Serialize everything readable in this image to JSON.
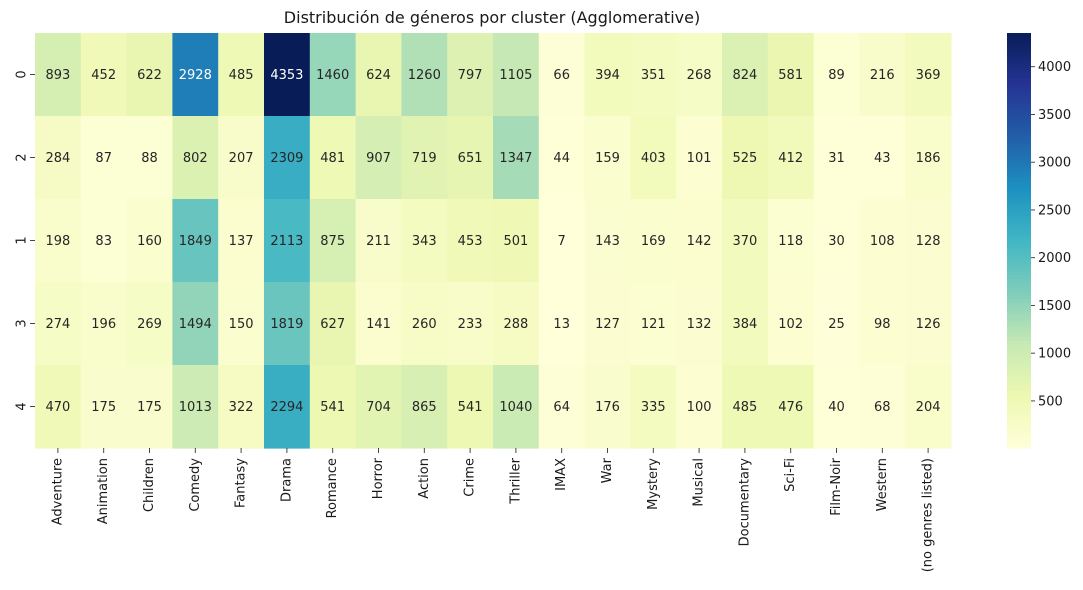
{
  "chart_data": {
    "type": "heatmap",
    "title": "Distribución de géneros por cluster (Agglomerative)",
    "xlabel": "",
    "ylabel": "",
    "colormap": "YlGnBu",
    "columns": [
      "Adventure",
      "Animation",
      "Children",
      "Comedy",
      "Fantasy",
      "Drama",
      "Romance",
      "Horror",
      "Action",
      "Crime",
      "Thriller",
      "IMAX",
      "War",
      "Mystery",
      "Musical",
      "Documentary",
      "Sci-Fi",
      "Film-Noir",
      "Western",
      "(no genres listed)"
    ],
    "rows": [
      "0",
      "2",
      "1",
      "3",
      "4"
    ],
    "values": [
      [
        893,
        452,
        622,
        2928,
        485,
        4353,
        1460,
        624,
        1260,
        797,
        1105,
        66,
        394,
        351,
        268,
        824,
        581,
        89,
        216,
        369
      ],
      [
        284,
        87,
        88,
        802,
        207,
        2309,
        481,
        907,
        719,
        651,
        1347,
        44,
        159,
        403,
        101,
        525,
        412,
        31,
        43,
        186
      ],
      [
        198,
        83,
        160,
        1849,
        137,
        2113,
        875,
        211,
        343,
        453,
        501,
        7,
        143,
        169,
        142,
        370,
        118,
        30,
        108,
        128
      ],
      [
        274,
        196,
        269,
        1494,
        150,
        1819,
        627,
        141,
        260,
        233,
        288,
        13,
        127,
        121,
        132,
        384,
        102,
        25,
        98,
        126
      ],
      [
        470,
        175,
        175,
        1013,
        322,
        2294,
        541,
        704,
        865,
        541,
        1040,
        64,
        176,
        335,
        100,
        485,
        476,
        40,
        68,
        204
      ]
    ],
    "vmin": 7,
    "vmax": 4353,
    "colorbar_ticks": [
      500,
      1000,
      1500,
      2000,
      2500,
      3000,
      3500,
      4000
    ]
  }
}
